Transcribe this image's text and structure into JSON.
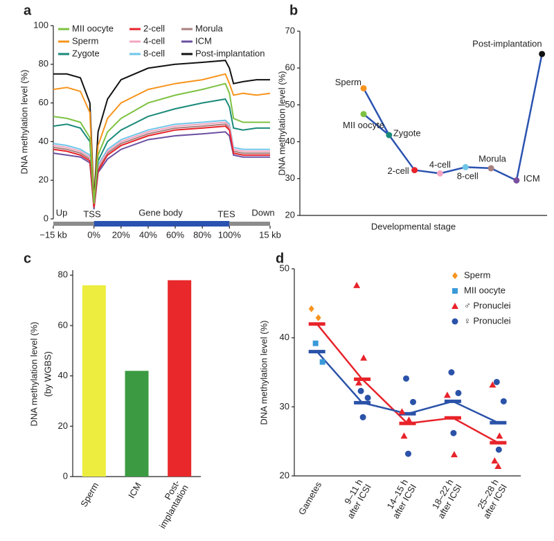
{
  "chart_data": [
    {
      "type": "line",
      "panel": "a",
      "ylabel": "DNA methylation level (%)",
      "annotations": [
        "Up",
        "TSS",
        "Gene body",
        "TES",
        "Down"
      ],
      "x": [
        -30,
        -20,
        -10,
        -3,
        0,
        3,
        10,
        20,
        40,
        60,
        80,
        97,
        100,
        103,
        110,
        120,
        130
      ],
      "series": [
        {
          "name": "MII oocyte",
          "color": "#7dc242",
          "values": [
            53,
            52,
            50,
            42,
            8,
            33,
            45,
            52,
            60,
            64,
            67,
            70,
            65,
            52,
            50,
            50,
            50
          ]
        },
        {
          "name": "Sperm",
          "color": "#f7941d",
          "values": [
            67,
            68,
            66,
            55,
            8,
            38,
            52,
            60,
            67,
            70,
            72,
            75,
            70,
            64,
            65,
            64,
            65
          ]
        },
        {
          "name": "Zygote",
          "color": "#1a8a7a",
          "values": [
            48,
            49,
            47,
            40,
            8,
            30,
            40,
            46,
            53,
            57,
            60,
            62,
            58,
            47,
            46,
            47,
            47
          ]
        },
        {
          "name": "2-cell",
          "color": "#e8232a",
          "values": [
            36,
            35,
            33,
            30,
            6,
            25,
            33,
            38,
            43,
            46,
            47,
            48,
            46,
            34,
            33,
            33,
            33
          ]
        },
        {
          "name": "4-cell",
          "color": "#f4a6c0",
          "values": [
            38,
            37,
            35,
            32,
            6,
            27,
            35,
            40,
            45,
            48,
            49,
            50,
            48,
            36,
            35,
            35,
            35
          ]
        },
        {
          "name": "8-cell",
          "color": "#6ec6e8",
          "values": [
            39,
            38,
            36,
            33,
            7,
            28,
            36,
            41,
            46,
            49,
            50,
            51,
            49,
            37,
            36,
            36,
            36
          ]
        },
        {
          "name": "Morula",
          "color": "#a8807e",
          "values": [
            37,
            36,
            34,
            31,
            6,
            26,
            34,
            39,
            44,
            47,
            48,
            49,
            47,
            35,
            34,
            34,
            34
          ]
        },
        {
          "name": "ICM",
          "color": "#6b4fa0",
          "values": [
            34,
            33,
            32,
            29,
            5,
            24,
            31,
            36,
            41,
            43,
            44,
            45,
            43,
            33,
            32,
            32,
            32
          ]
        },
        {
          "name": "Post-implantation",
          "color": "#111111",
          "values": [
            75,
            75,
            73,
            60,
            10,
            45,
            62,
            72,
            78,
            80,
            81,
            82,
            78,
            70,
            71,
            72,
            72
          ]
        }
      ],
      "xlim": [
        -30,
        130
      ],
      "xticks": [
        {
          "value": -30,
          "label": "−15 kb"
        },
        {
          "value": 0,
          "label": "0%"
        },
        {
          "value": 20,
          "label": "20%"
        },
        {
          "value": 40,
          "label": "40%"
        },
        {
          "value": 60,
          "label": "60%"
        },
        {
          "value": 80,
          "label": "80%"
        },
        {
          "value": 100,
          "label": "100%"
        },
        {
          "value": 130,
          "label": "15 kb"
        }
      ],
      "ylim": [
        0,
        100
      ],
      "yticks": [
        0,
        20,
        40,
        60,
        80,
        100
      ]
    },
    {
      "type": "line",
      "panel": "b",
      "ylabel": "DNA methylation level (%)",
      "xlabel": "Developmental stage",
      "categories": [
        "Sperm",
        "MII oocyte",
        "Zygote",
        "2-cell",
        "4-cell",
        "8-cell",
        "Morula",
        "ICM",
        "Post-implantation"
      ],
      "x": [
        0,
        0,
        1,
        2,
        3,
        4,
        5,
        6,
        7
      ],
      "values": [
        54.5,
        47.5,
        41.8,
        32.3,
        31.4,
        33.1,
        32.8,
        29.5,
        63.8
      ],
      "colors": [
        "#f7941d",
        "#7dc242",
        "#1a8a7a",
        "#e8232a",
        "#f4a6c0",
        "#6ec6e8",
        "#a8807e",
        "#7a4f9e",
        "#111111"
      ],
      "line_color": "#2a52b0",
      "xlim": [
        -2.5,
        7.2
      ],
      "ylim": [
        20,
        70
      ],
      "yticks": [
        20,
        30,
        40,
        50,
        60,
        70
      ]
    },
    {
      "type": "bar",
      "panel": "c",
      "ylabel": "DNA methylation level (%)",
      "ylabel2": "(by WGBS)",
      "categories": [
        [
          "Sperm"
        ],
        [
          "ICM"
        ],
        [
          "Post-",
          "implantation"
        ]
      ],
      "values": [
        76,
        42,
        78
      ],
      "colors": [
        "#eded3f",
        "#3c9a42",
        "#e8282b"
      ],
      "ylim": [
        0,
        82
      ],
      "yticks": [
        0,
        20,
        40,
        60,
        80
      ]
    },
    {
      "type": "scatter",
      "panel": "d",
      "ylabel": "DNA methylation level (%)",
      "categories": [
        [
          "Gametes"
        ],
        [
          "9–11 h",
          "after ICSI"
        ],
        [
          "14–15 h",
          "after ICSI"
        ],
        [
          "18–22 h",
          "after ICSI"
        ],
        [
          "25–28 h",
          "after ICSI"
        ]
      ],
      "series": [
        {
          "name": "Sperm",
          "color": "#f7941d",
          "marker": "diamond",
          "x": [
            0,
            0
          ],
          "values": [
            44.2,
            42.9
          ]
        },
        {
          "name": "MII oocyte",
          "color": "#3a9ad9",
          "marker": "square",
          "x": [
            0,
            0
          ],
          "values": [
            39.2,
            36.5
          ]
        },
        {
          "name": "♂ Pronuclei",
          "color": "#e8232a",
          "marker": "triangle",
          "x": [
            1,
            1,
            1,
            2,
            2,
            2,
            3,
            3,
            4,
            4,
            4,
            4
          ],
          "values": [
            47.6,
            37.1,
            33.5,
            29.3,
            28.1,
            25.8,
            31.7,
            23.1,
            33.2,
            25.8,
            22.2,
            21.4
          ]
        },
        {
          "name": "♀ Pronuclei",
          "color": "#2a52a8",
          "marker": "circle",
          "x": [
            1,
            1,
            1,
            2,
            2,
            2,
            3,
            3,
            3,
            4,
            4,
            4
          ],
          "values": [
            32.3,
            31.3,
            28.5,
            34.1,
            30.7,
            23.2,
            35,
            32,
            26.2,
            33.6,
            30.8,
            23.8
          ]
        }
      ],
      "mean_lines": [
        {
          "color": "#e8232a",
          "values": [
            42,
            34,
            27.6,
            28.4,
            24.8
          ]
        },
        {
          "color": "#2a52a8",
          "values": [
            38,
            30.6,
            29,
            30.8,
            27.7
          ]
        }
      ],
      "ylim": [
        20,
        50
      ],
      "yticks": [
        20,
        30,
        40,
        50
      ]
    }
  ]
}
